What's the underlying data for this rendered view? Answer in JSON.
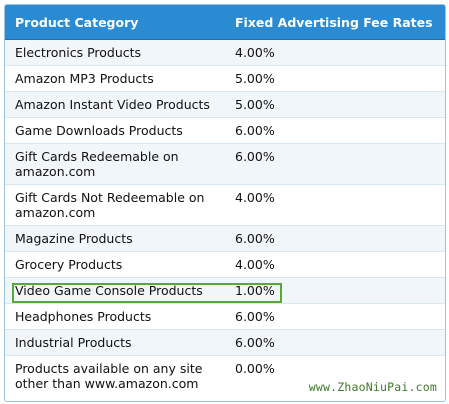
{
  "header": {
    "col1": "Product Category",
    "col2": "Fixed Advertising Fee Rates"
  },
  "rows": [
    {
      "category": "Electronics Products",
      "rate": "4.00%"
    },
    {
      "category": "Amazon MP3 Products",
      "rate": "5.00%"
    },
    {
      "category": "Amazon Instant Video Products",
      "rate": "5.00%"
    },
    {
      "category": "Game Downloads Products",
      "rate": "6.00%"
    },
    {
      "category": "Gift Cards Redeemable on amazon.com",
      "rate": "6.00%"
    },
    {
      "category": "Gift Cards Not Redeemable on amazon.com",
      "rate": "4.00%"
    },
    {
      "category": "Magazine Products",
      "rate": "6.00%"
    },
    {
      "category": "Grocery Products",
      "rate": "4.00%"
    },
    {
      "category": "Video Game Console Products",
      "rate": "1.00%"
    },
    {
      "category": "Headphones Products",
      "rate": "6.00%"
    },
    {
      "category": "Industrial Products",
      "rate": "6.00%"
    },
    {
      "category": "Products available on any site other than www.amazon.com",
      "rate": "0.00%"
    }
  ],
  "watermark": "www.ZhaoNiuPai.com",
  "colors": {
    "header_bg": "#2a8ad2",
    "highlight_border": "#5aa83c",
    "watermark": "#3d7a2a"
  }
}
